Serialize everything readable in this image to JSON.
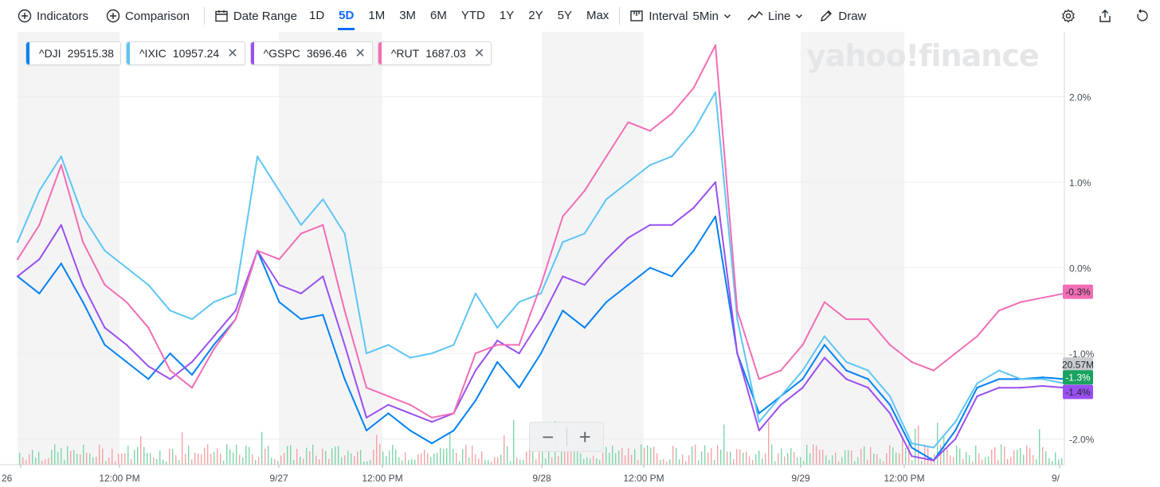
{
  "toolbar": {
    "indicators": "Indicators",
    "comparison": "Comparison",
    "date_range": "Date Range",
    "ranges": [
      "1D",
      "5D",
      "1M",
      "3M",
      "6M",
      "YTD",
      "1Y",
      "2Y",
      "5Y",
      "Max"
    ],
    "active_range": "5D",
    "interval_label": "Interval",
    "interval_value": "5Min",
    "chart_type": "Line",
    "draw": "Draw",
    "icons": [
      "plus-circle-icon",
      "plus-circle-icon",
      "calendar-icon",
      "candle-icon",
      "line-chart-icon",
      "pencil-icon",
      "gear-icon",
      "share-icon",
      "reset-icon"
    ]
  },
  "chips": [
    {
      "symbol": "^DJI",
      "value": "29515.38",
      "color": "#0081f2",
      "removable": false
    },
    {
      "symbol": "^IXIC",
      "value": "10957.24",
      "color": "#5ec5f6",
      "removable": true
    },
    {
      "symbol": "^GSPC",
      "value": "3696.46",
      "color": "#9a4ff0",
      "removable": true
    },
    {
      "symbol": "^RUT",
      "value": "1687.03",
      "color": "#f26db5",
      "removable": true
    }
  ],
  "watermark": "yahoo!finance",
  "zoom": {
    "minus": "−",
    "plus": "+"
  },
  "chart_data": {
    "type": "line",
    "y_axis": {
      "unit": "%",
      "ticks": [
        "2.0%",
        "1.0%",
        "0.0%",
        "-1.0%",
        "-2.0%"
      ],
      "tick_values": [
        2,
        1,
        0,
        -1,
        -2
      ],
      "range": [
        -2.3,
        2.7
      ]
    },
    "x_axis": {
      "labels": [
        "26",
        "12:00 PM",
        "9/27",
        "12:00 PM",
        "9/28",
        "12:00 PM",
        "9/29",
        "12:00 PM",
        "9/"
      ]
    },
    "shaded_sessions": "after-hours periods shaded light gray",
    "series": [
      {
        "name": "^DJI",
        "color": "#0081f2",
        "x": [
          0,
          0.25,
          0.5,
          0.75,
          1,
          1.25,
          1.5,
          1.75,
          2,
          2.25,
          2.5,
          2.75,
          3,
          3.25,
          3.5,
          3.75,
          4,
          4.25,
          4.5,
          4.75,
          5,
          5.25,
          5.5,
          5.75,
          6,
          6.25,
          6.5,
          6.75,
          7,
          7.25,
          7.5,
          7.75,
          8,
          8.25,
          8.5,
          8.75,
          9,
          9.25,
          9.5,
          9.75,
          10,
          10.25,
          10.5,
          10.75,
          11,
          11.25,
          11.5,
          11.75,
          12
        ],
        "y": [
          -0.1,
          -0.3,
          0.05,
          -0.4,
          -0.9,
          -1.1,
          -1.3,
          -1.0,
          -1.25,
          -0.9,
          -0.6,
          0.2,
          -0.4,
          -0.6,
          -0.55,
          -1.3,
          -1.9,
          -1.7,
          -1.9,
          -2.05,
          -1.9,
          -1.55,
          -1.1,
          -1.4,
          -1.0,
          -0.5,
          -0.7,
          -0.4,
          -0.2,
          0.0,
          -0.1,
          0.2,
          0.6,
          -1.0,
          -1.7,
          -1.5,
          -1.3,
          -0.9,
          -1.2,
          -1.3,
          -1.6,
          -2.1,
          -2.25,
          -1.9,
          -1.4,
          -1.3,
          -1.3,
          -1.28,
          -1.3
        ],
        "last_label": "-1.3%",
        "volume_label": "20.57M"
      },
      {
        "name": "^IXIC",
        "color": "#5ec5f6",
        "x": [
          0,
          0.25,
          0.5,
          0.75,
          1,
          1.25,
          1.5,
          1.75,
          2,
          2.25,
          2.5,
          2.75,
          3,
          3.25,
          3.5,
          3.75,
          4,
          4.25,
          4.5,
          4.75,
          5,
          5.25,
          5.5,
          5.75,
          6,
          6.25,
          6.5,
          6.75,
          7,
          7.25,
          7.5,
          7.75,
          8,
          8.25,
          8.5,
          8.75,
          9,
          9.25,
          9.5,
          9.75,
          10,
          10.25,
          10.5,
          10.75,
          11,
          11.25,
          11.5,
          11.75,
          12
        ],
        "y": [
          0.3,
          0.9,
          1.3,
          0.6,
          0.2,
          0.0,
          -0.2,
          -0.5,
          -0.6,
          -0.4,
          -0.3,
          1.3,
          0.9,
          0.5,
          0.8,
          0.4,
          -1.0,
          -0.9,
          -1.05,
          -1.0,
          -0.9,
          -0.3,
          -0.7,
          -0.4,
          -0.3,
          0.3,
          0.4,
          0.8,
          1.0,
          1.2,
          1.3,
          1.6,
          2.05,
          -0.6,
          -1.8,
          -1.5,
          -1.2,
          -0.8,
          -1.1,
          -1.2,
          -1.5,
          -2.05,
          -2.1,
          -1.8,
          -1.35,
          -1.2,
          -1.3,
          -1.3,
          -1.35
        ],
        "last_label": "-1.3%"
      },
      {
        "name": "^GSPC",
        "color": "#9a4ff0",
        "x": [
          0,
          0.25,
          0.5,
          0.75,
          1,
          1.25,
          1.5,
          1.75,
          2,
          2.25,
          2.5,
          2.75,
          3,
          3.25,
          3.5,
          3.75,
          4,
          4.25,
          4.5,
          4.75,
          5,
          5.25,
          5.5,
          5.75,
          6,
          6.25,
          6.5,
          6.75,
          7,
          7.25,
          7.5,
          7.75,
          8,
          8.25,
          8.5,
          8.75,
          9,
          9.25,
          9.5,
          9.75,
          10,
          10.25,
          10.5,
          10.75,
          11,
          11.25,
          11.5,
          11.75,
          12
        ],
        "y": [
          -0.1,
          0.1,
          0.5,
          -0.2,
          -0.7,
          -0.9,
          -1.15,
          -1.3,
          -1.1,
          -0.8,
          -0.5,
          0.2,
          -0.2,
          -0.3,
          -0.1,
          -0.9,
          -1.75,
          -1.6,
          -1.7,
          -1.8,
          -1.7,
          -1.2,
          -0.85,
          -1.0,
          -0.6,
          -0.1,
          -0.2,
          0.1,
          0.35,
          0.5,
          0.5,
          0.7,
          1.0,
          -1.0,
          -1.9,
          -1.6,
          -1.4,
          -1.05,
          -1.3,
          -1.4,
          -1.7,
          -2.2,
          -2.25,
          -2.0,
          -1.5,
          -1.4,
          -1.4,
          -1.38,
          -1.4
        ],
        "last_label": "-1.4%"
      },
      {
        "name": "^RUT",
        "color": "#f26db5",
        "x": [
          0,
          0.25,
          0.5,
          0.75,
          1,
          1.25,
          1.5,
          1.75,
          2,
          2.25,
          2.5,
          2.75,
          3,
          3.25,
          3.5,
          3.75,
          4,
          4.25,
          4.5,
          4.75,
          5,
          5.25,
          5.5,
          5.75,
          6,
          6.25,
          6.5,
          6.75,
          7,
          7.25,
          7.5,
          7.75,
          8,
          8.25,
          8.5,
          8.75,
          9,
          9.25,
          9.5,
          9.75,
          10,
          10.25,
          10.5,
          10.75,
          11,
          11.25,
          11.5,
          11.75,
          12
        ],
        "y": [
          0.1,
          0.5,
          1.2,
          0.3,
          -0.2,
          -0.4,
          -0.7,
          -1.2,
          -1.4,
          -0.95,
          -0.6,
          0.2,
          0.1,
          0.4,
          0.5,
          -0.5,
          -1.4,
          -1.5,
          -1.6,
          -1.75,
          -1.7,
          -1.0,
          -0.9,
          -0.9,
          -0.2,
          0.6,
          0.9,
          1.3,
          1.7,
          1.6,
          1.8,
          2.1,
          2.6,
          -0.5,
          -1.3,
          -1.2,
          -0.9,
          -0.4,
          -0.6,
          -0.6,
          -0.9,
          -1.1,
          -1.2,
          -1.0,
          -0.8,
          -0.5,
          -0.4,
          -0.35,
          -0.3
        ],
        "last_label": "-0.3%"
      }
    ]
  }
}
